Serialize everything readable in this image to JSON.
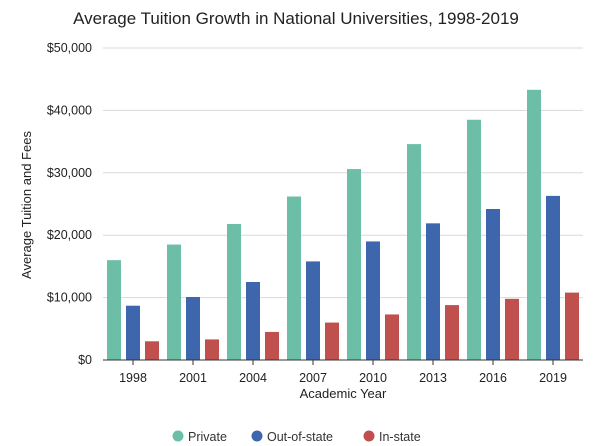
{
  "chart_data": {
    "type": "bar",
    "title": "Average Tuition Growth in National Universities, 1998-2019",
    "xlabel": "Academic Year",
    "ylabel": "Average Tuition and Fees",
    "ylim": [
      0,
      50000
    ],
    "yticks": [
      0,
      10000,
      20000,
      30000,
      40000,
      50000
    ],
    "ytick_labels": [
      "$0",
      "$10,000",
      "$20,000",
      "$30,000",
      "$40,000",
      "$50,000"
    ],
    "grid": true,
    "legend_position": "bottom",
    "categories": [
      "1998",
      "2001",
      "2004",
      "2007",
      "2010",
      "2013",
      "2016",
      "2019"
    ],
    "series": [
      {
        "name": "Private",
        "color": "#6cbfa6",
        "values": [
          16000,
          18500,
          21800,
          26200,
          30600,
          34600,
          38500,
          43300
        ]
      },
      {
        "name": "Out-of-state",
        "color": "#3d66ad",
        "values": [
          8700,
          10100,
          12500,
          15800,
          19000,
          21900,
          24200,
          26300
        ]
      },
      {
        "name": "In-state",
        "color": "#c0504d",
        "values": [
          3000,
          3300,
          4500,
          6000,
          7300,
          8800,
          9800,
          10800
        ]
      }
    ]
  }
}
